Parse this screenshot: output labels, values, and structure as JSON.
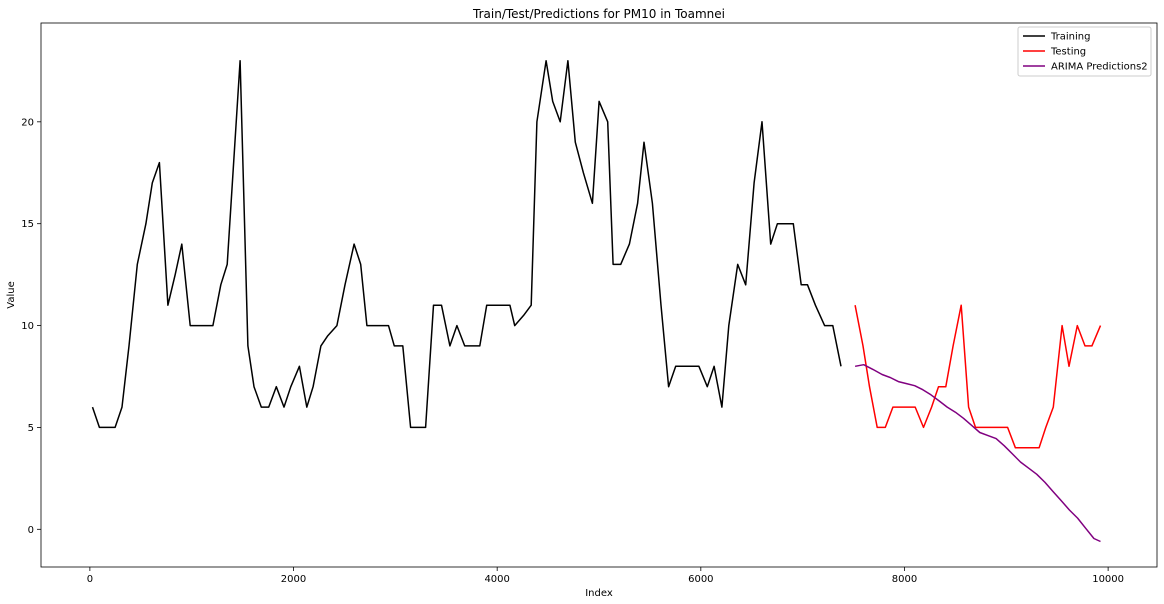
{
  "chart_data": {
    "type": "line",
    "title": "Train/Test/Predictions for PM10 in Toamnei",
    "xlabel": "Index",
    "ylabel": "Value",
    "xlim": [
      -480,
      10480
    ],
    "ylim": [
      -1.85,
      24.85
    ],
    "xticks": [
      0,
      2000,
      4000,
      6000,
      8000,
      10000
    ],
    "xtick_labels": [
      "0",
      "2000",
      "4000",
      "6000",
      "8000",
      "10000"
    ],
    "yticks": [
      0,
      5,
      10,
      15,
      20
    ],
    "ytick_labels": [
      "0",
      "5",
      "10",
      "15",
      "20"
    ],
    "grid": false,
    "legend_position": "upper right",
    "series": [
      {
        "name": "Training",
        "color": "#000000",
        "points": [
          [
            26,
            6
          ],
          [
            94,
            5
          ],
          [
            162,
            5
          ],
          [
            248,
            5
          ],
          [
            315,
            6
          ],
          [
            384,
            9
          ],
          [
            466,
            13
          ],
          [
            550,
            15
          ],
          [
            613,
            17
          ],
          [
            683,
            18
          ],
          [
            766,
            11
          ],
          [
            838,
            12.5
          ],
          [
            903,
            14
          ],
          [
            985,
            10
          ],
          [
            1060,
            10
          ],
          [
            1130,
            10
          ],
          [
            1208,
            10
          ],
          [
            1286,
            12
          ],
          [
            1349,
            13
          ],
          [
            1475,
            23
          ],
          [
            1552,
            9
          ],
          [
            1612,
            7
          ],
          [
            1684,
            6
          ],
          [
            1756,
            6
          ],
          [
            1831,
            7
          ],
          [
            1906,
            6
          ],
          [
            1973,
            7
          ],
          [
            2058,
            8
          ],
          [
            2130,
            6
          ],
          [
            2192,
            7
          ],
          [
            2269,
            9
          ],
          [
            2337,
            9.5
          ],
          [
            2426,
            10
          ],
          [
            2506,
            12
          ],
          [
            2595,
            14
          ],
          [
            2660,
            13
          ],
          [
            2721,
            10
          ],
          [
            2798,
            10
          ],
          [
            2866,
            10
          ],
          [
            2933,
            10
          ],
          [
            2990,
            9
          ],
          [
            3073,
            9
          ],
          [
            3150,
            5
          ],
          [
            3226,
            5
          ],
          [
            3297,
            5
          ],
          [
            3375,
            11
          ],
          [
            3453,
            11
          ],
          [
            3536,
            9
          ],
          [
            3604,
            10
          ],
          [
            3681,
            9
          ],
          [
            3757,
            9
          ],
          [
            3829,
            9
          ],
          [
            3897,
            11
          ],
          [
            3978,
            11
          ],
          [
            4055,
            11
          ],
          [
            4125,
            11
          ],
          [
            4172,
            10
          ],
          [
            4260,
            10.5
          ],
          [
            4334,
            11
          ],
          [
            4390,
            20
          ],
          [
            4480,
            23
          ],
          [
            4545,
            21
          ],
          [
            4619,
            20
          ],
          [
            4695,
            23
          ],
          [
            4767,
            19
          ],
          [
            4847,
            17.5
          ],
          [
            4935,
            16
          ],
          [
            5001,
            21
          ],
          [
            5085,
            20
          ],
          [
            5138,
            13
          ],
          [
            5213,
            13
          ],
          [
            5299,
            14
          ],
          [
            5379,
            16
          ],
          [
            5442,
            19
          ],
          [
            5524,
            16
          ],
          [
            5609,
            11
          ],
          [
            5684,
            7
          ],
          [
            5753,
            8
          ],
          [
            5822,
            8
          ],
          [
            5904,
            8
          ],
          [
            5981,
            8
          ],
          [
            6064,
            7
          ],
          [
            6130,
            8
          ],
          [
            6207,
            6
          ],
          [
            6275,
            10
          ],
          [
            6362,
            13
          ],
          [
            6441,
            12
          ],
          [
            6523,
            17
          ],
          [
            6601,
            20
          ],
          [
            6686,
            14
          ],
          [
            6752,
            15
          ],
          [
            6831,
            15
          ],
          [
            6908,
            15
          ],
          [
            6986,
            12
          ],
          [
            7048,
            12
          ],
          [
            7125,
            11
          ],
          [
            7216,
            10
          ],
          [
            7296,
            10
          ],
          [
            7377,
            8
          ]
        ]
      },
      {
        "name": "Testing",
        "color": "#ff0000",
        "points": [
          [
            7515,
            11
          ],
          [
            7593,
            9
          ],
          [
            7657,
            7
          ],
          [
            7732,
            5
          ],
          [
            7812,
            5
          ],
          [
            7886,
            6
          ],
          [
            7961,
            6
          ],
          [
            8036,
            6
          ],
          [
            8105,
            6
          ],
          [
            8187,
            5
          ],
          [
            8266,
            6
          ],
          [
            8334,
            7
          ],
          [
            8406,
            7
          ],
          [
            8478,
            9
          ],
          [
            8557,
            11
          ],
          [
            8630,
            6
          ],
          [
            8698,
            5
          ],
          [
            8774,
            5
          ],
          [
            8852,
            5
          ],
          [
            8930,
            5
          ],
          [
            9013,
            5
          ],
          [
            9089,
            4
          ],
          [
            9166,
            4
          ],
          [
            9246,
            4
          ],
          [
            9322,
            4
          ],
          [
            9388,
            5
          ],
          [
            9462,
            6
          ],
          [
            9548,
            10
          ],
          [
            9616,
            8
          ],
          [
            9697,
            10
          ],
          [
            9773,
            9
          ],
          [
            9841,
            9
          ],
          [
            9925,
            10
          ]
        ]
      },
      {
        "name": "ARIMA Predictions2",
        "color": "#800080",
        "points": [
          [
            7515,
            8.0
          ],
          [
            7600,
            8.08
          ],
          [
            7690,
            7.85
          ],
          [
            7780,
            7.6
          ],
          [
            7860,
            7.45
          ],
          [
            7940,
            7.25
          ],
          [
            8020,
            7.15
          ],
          [
            8100,
            7.05
          ],
          [
            8180,
            6.85
          ],
          [
            8260,
            6.6
          ],
          [
            8340,
            6.3
          ],
          [
            8420,
            6.0
          ],
          [
            8500,
            5.75
          ],
          [
            8580,
            5.45
          ],
          [
            8660,
            5.1
          ],
          [
            8740,
            4.75
          ],
          [
            8820,
            4.6
          ],
          [
            8900,
            4.45
          ],
          [
            8980,
            4.1
          ],
          [
            9060,
            3.7
          ],
          [
            9140,
            3.3
          ],
          [
            9220,
            3.0
          ],
          [
            9300,
            2.7
          ],
          [
            9380,
            2.3
          ],
          [
            9460,
            1.85
          ],
          [
            9540,
            1.4
          ],
          [
            9620,
            0.95
          ],
          [
            9700,
            0.55
          ],
          [
            9780,
            0.05
          ],
          [
            9860,
            -0.45
          ],
          [
            9925,
            -0.6
          ]
        ]
      }
    ]
  }
}
